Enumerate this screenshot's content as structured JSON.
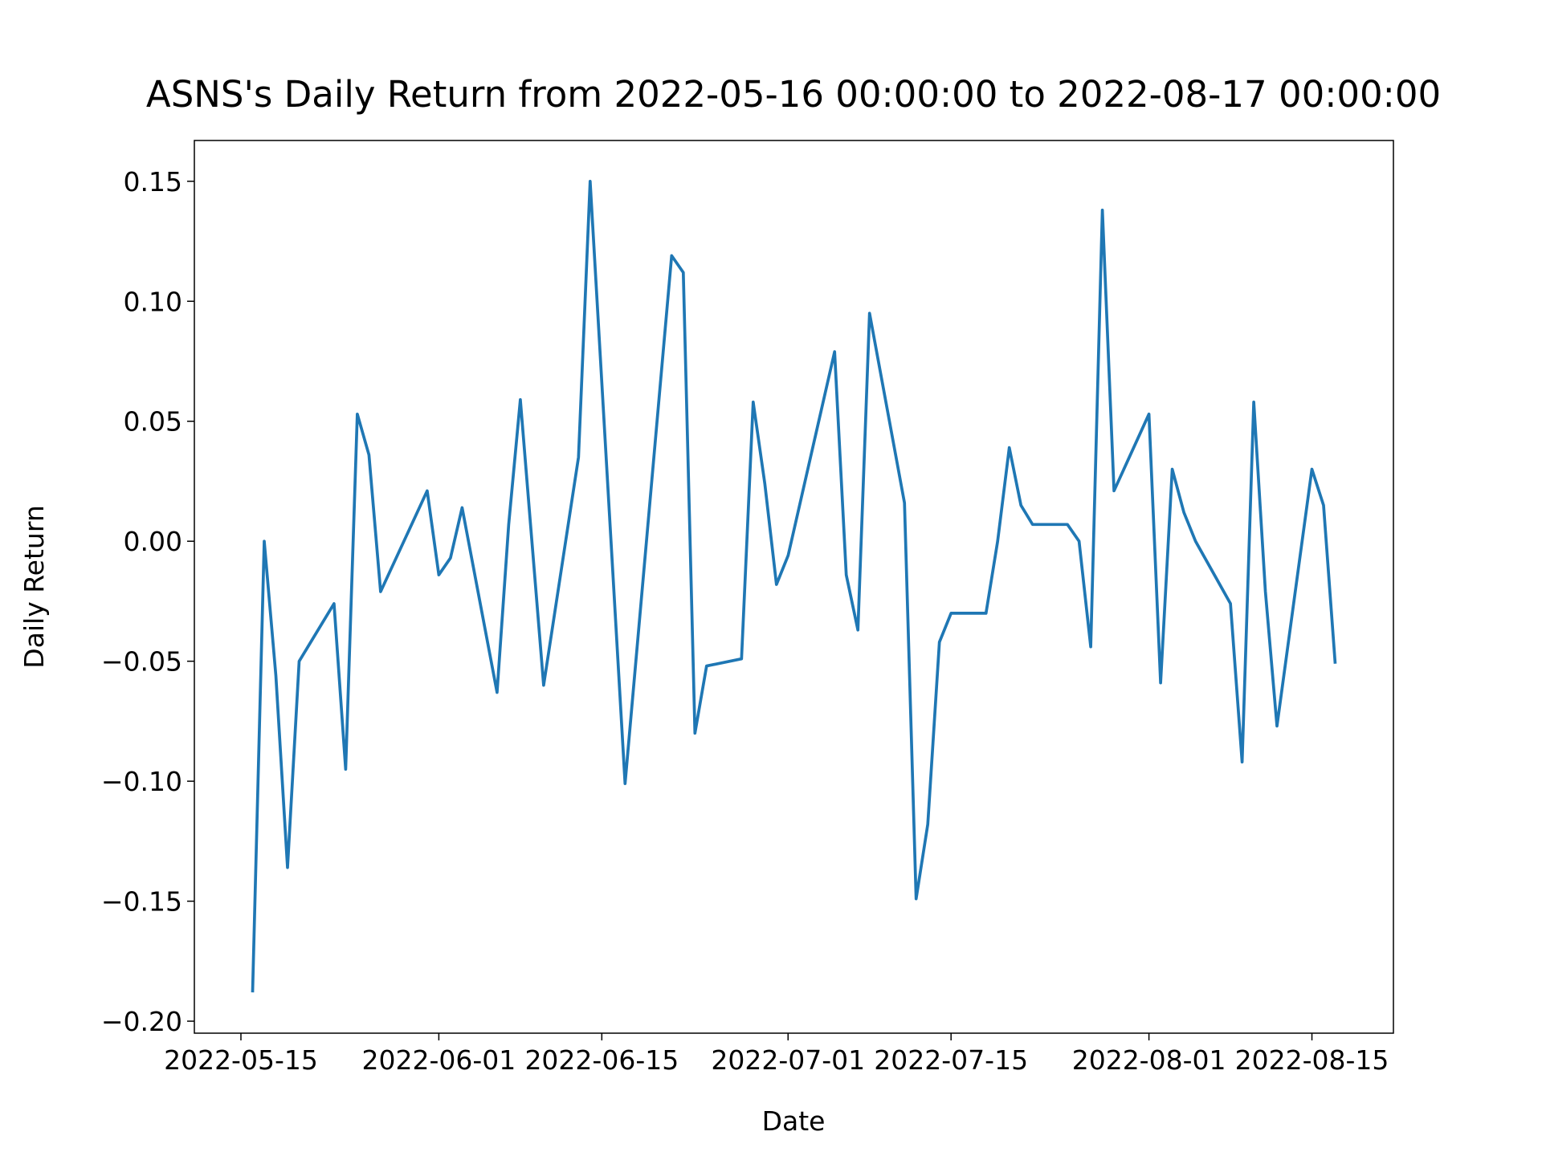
{
  "chart_data": {
    "type": "line",
    "title": "ASNS's Daily Return from 2022-05-16 00:00:00 to 2022-08-17 00:00:00",
    "x_label": "Date",
    "y_label": "Daily Return",
    "x": [
      "2022-05-16",
      "2022-05-17",
      "2022-05-18",
      "2022-05-19",
      "2022-05-20",
      "2022-05-23",
      "2022-05-24",
      "2022-05-25",
      "2022-05-26",
      "2022-05-27",
      "2022-05-31",
      "2022-06-01",
      "2022-06-02",
      "2022-06-03",
      "2022-06-06",
      "2022-06-07",
      "2022-06-08",
      "2022-06-10",
      "2022-06-13",
      "2022-06-14",
      "2022-06-17",
      "2022-06-21",
      "2022-06-22",
      "2022-06-23",
      "2022-06-24",
      "2022-06-27",
      "2022-06-28",
      "2022-06-29",
      "2022-06-30",
      "2022-07-01",
      "2022-07-05",
      "2022-07-06",
      "2022-07-07",
      "2022-07-08",
      "2022-07-11",
      "2022-07-12",
      "2022-07-13",
      "2022-07-14",
      "2022-07-15",
      "2022-07-18",
      "2022-07-19",
      "2022-07-20",
      "2022-07-21",
      "2022-07-22",
      "2022-07-25",
      "2022-07-26",
      "2022-07-27",
      "2022-07-28",
      "2022-07-29",
      "2022-08-01",
      "2022-08-02",
      "2022-08-03",
      "2022-08-04",
      "2022-08-05",
      "2022-08-08",
      "2022-08-09",
      "2022-08-10",
      "2022-08-11",
      "2022-08-12",
      "2022-08-15",
      "2022-08-16",
      "2022-08-17"
    ],
    "series": [
      {
        "name": "Daily Return",
        "color": "#1f77b4",
        "values": [
          -0.188,
          0.0,
          -0.056,
          -0.136,
          -0.05,
          -0.026,
          -0.095,
          0.053,
          0.036,
          -0.021,
          0.021,
          -0.014,
          -0.007,
          0.014,
          -0.063,
          0.007,
          0.059,
          -0.06,
          0.035,
          0.15,
          -0.101,
          0.119,
          0.112,
          -0.08,
          -0.052,
          -0.049,
          0.058,
          0.024,
          -0.018,
          -0.006,
          0.079,
          -0.014,
          -0.037,
          0.095,
          0.016,
          -0.149,
          -0.118,
          -0.042,
          -0.03,
          -0.03,
          0.0,
          0.039,
          0.015,
          0.007,
          0.007,
          0.0,
          -0.044,
          0.138,
          0.021,
          0.053,
          -0.059,
          0.03,
          0.012,
          0.0,
          -0.026,
          -0.092,
          0.058,
          -0.021,
          -0.077,
          0.03,
          0.015,
          -0.051
        ]
      }
    ],
    "xlim": [
      "2022-05-11",
      "2022-08-22"
    ],
    "xticks": [
      "2022-05-15",
      "2022-06-01",
      "2022-06-15",
      "2022-07-01",
      "2022-07-15",
      "2022-08-01",
      "2022-08-15"
    ],
    "ylim": [
      -0.205,
      0.167
    ],
    "yticks": [
      {
        "value": -0.2,
        "label": "−0.20"
      },
      {
        "value": -0.15,
        "label": "−0.15"
      },
      {
        "value": -0.1,
        "label": "−0.10"
      },
      {
        "value": -0.05,
        "label": "−0.05"
      },
      {
        "value": 0,
        "label": "0.00"
      },
      {
        "value": 0.05,
        "label": "0.05"
      },
      {
        "value": 0.1,
        "label": "0.10"
      },
      {
        "value": 0.15,
        "label": "0.15"
      }
    ]
  }
}
